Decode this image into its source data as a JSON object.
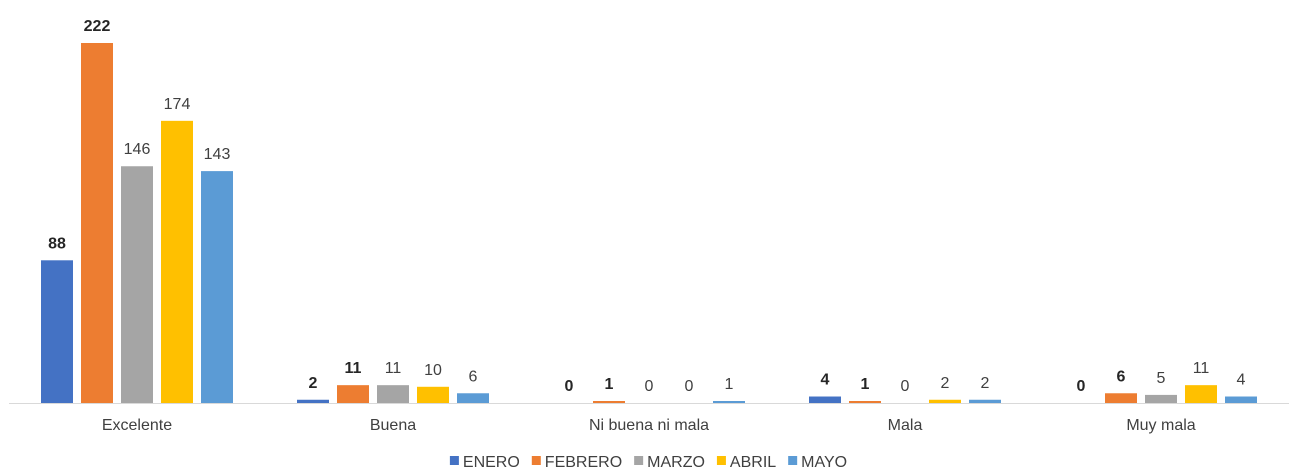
{
  "chart_data": {
    "type": "bar",
    "categories": [
      "Excelente",
      "Buena",
      "Ni buena ni mala",
      "Mala",
      "Muy mala"
    ],
    "series": [
      {
        "name": "ENERO",
        "color": "#4472C4",
        "values": [
          88,
          2,
          0,
          4,
          0
        ],
        "bold_labels": true
      },
      {
        "name": "FEBRERO",
        "color": "#ED7D31",
        "values": [
          222,
          11,
          1,
          1,
          6
        ],
        "bold_labels": true
      },
      {
        "name": "MARZO",
        "color": "#A5A5A5",
        "values": [
          146,
          11,
          0,
          0,
          5
        ],
        "bold_labels": false
      },
      {
        "name": "ABRIL",
        "color": "#FFC000",
        "values": [
          174,
          10,
          0,
          2,
          11
        ],
        "bold_labels": false
      },
      {
        "name": "MAYO",
        "color": "#5B9BD5",
        "values": [
          143,
          6,
          1,
          2,
          4
        ],
        "bold_labels": false
      }
    ],
    "ylim": [
      0,
      222
    ],
    "grid": false,
    "legend_position": "bottom",
    "title": "",
    "xlabel": "",
    "ylabel": ""
  }
}
